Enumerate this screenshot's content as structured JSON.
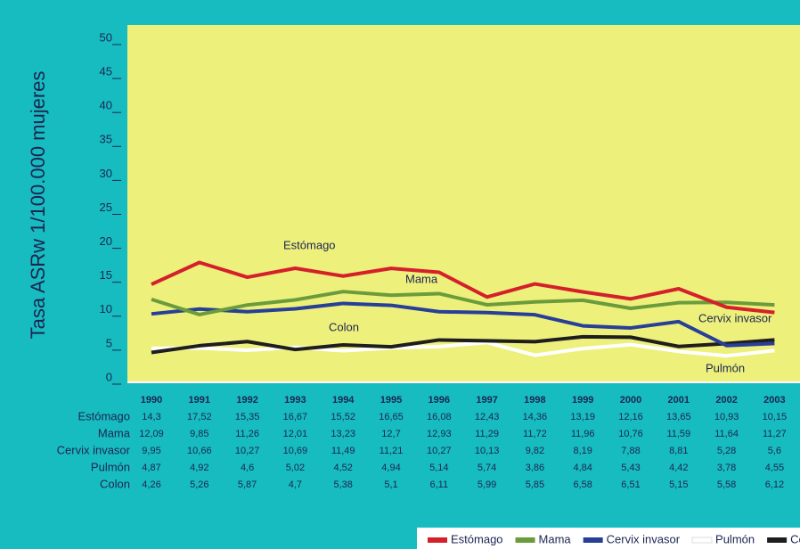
{
  "chart_data": {
    "type": "line",
    "y_label": "Tasa ASRw 1/100.000 mujeres",
    "categories": [
      "1990",
      "1991",
      "1992",
      "1993",
      "1994",
      "1995",
      "1996",
      "1997",
      "1998",
      "1999",
      "2000",
      "2001",
      "2002",
      "2003"
    ],
    "ylim": [
      0,
      50
    ],
    "yticks": [
      0,
      5,
      10,
      15,
      20,
      25,
      30,
      35,
      40,
      45,
      50
    ],
    "series": [
      {
        "name": "Estómago",
        "color": "#d4202b",
        "values": [
          14.3,
          17.52,
          15.35,
          16.67,
          15.52,
          16.65,
          16.08,
          12.43,
          14.36,
          13.19,
          12.16,
          13.65,
          10.93,
          10.15
        ],
        "value_labels": [
          "14,3",
          "17,52",
          "15,35",
          "16,67",
          "15,52",
          "16,65",
          "16,08",
          "12,43",
          "14,36",
          "13,19",
          "12,16",
          "13,65",
          "10,93",
          "10,15"
        ]
      },
      {
        "name": "Mama",
        "color": "#6b9c3b",
        "values": [
          12.09,
          9.85,
          11.26,
          12.01,
          13.23,
          12.7,
          12.93,
          11.29,
          11.72,
          11.96,
          10.76,
          11.59,
          11.64,
          11.27
        ],
        "value_labels": [
          "12,09",
          "9,85",
          "11,26",
          "12,01",
          "13,23",
          "12,7",
          "12,93",
          "11,29",
          "11,72",
          "11,96",
          "10,76",
          "11,59",
          "11,64",
          "11,27"
        ]
      },
      {
        "name": "Cervix invasor",
        "color": "#283f97",
        "values": [
          9.95,
          10.66,
          10.27,
          10.69,
          11.49,
          11.21,
          10.27,
          10.13,
          9.82,
          8.19,
          7.88,
          8.81,
          5.28,
          5.6
        ],
        "value_labels": [
          "9,95",
          "10,66",
          "10,27",
          "10,69",
          "11,49",
          "11,21",
          "10,27",
          "10,13",
          "9,82",
          "8,19",
          "7,88",
          "8,81",
          "5,28",
          "5,6"
        ]
      },
      {
        "name": "Pulmón",
        "color": "#ffffff",
        "values": [
          4.87,
          4.92,
          4.6,
          5.02,
          4.52,
          4.94,
          5.14,
          5.74,
          3.86,
          4.84,
          5.43,
          4.42,
          3.78,
          4.55
        ],
        "value_labels": [
          "4,87",
          "4,92",
          "4,6",
          "5,02",
          "4,52",
          "4,94",
          "5,14",
          "5,74",
          "3,86",
          "4,84",
          "5,43",
          "4,42",
          "3,78",
          "4,55"
        ]
      },
      {
        "name": "Colon",
        "color": "#1e1e1e",
        "values": [
          4.26,
          5.26,
          5.87,
          4.7,
          5.38,
          5.1,
          6.11,
          5.99,
          5.85,
          6.58,
          6.51,
          5.15,
          5.58,
          6.12
        ],
        "value_labels": [
          "4,26",
          "5,26",
          "5,87",
          "4,7",
          "5,38",
          "5,1",
          "6,11",
          "5,99",
          "5,85",
          "6,58",
          "6,51",
          "5,15",
          "5,58",
          "6,12"
        ]
      }
    ],
    "annotations": [
      "Estómago",
      "Mama",
      "Colon",
      "Cervix invasor",
      "Pulmón"
    ]
  }
}
